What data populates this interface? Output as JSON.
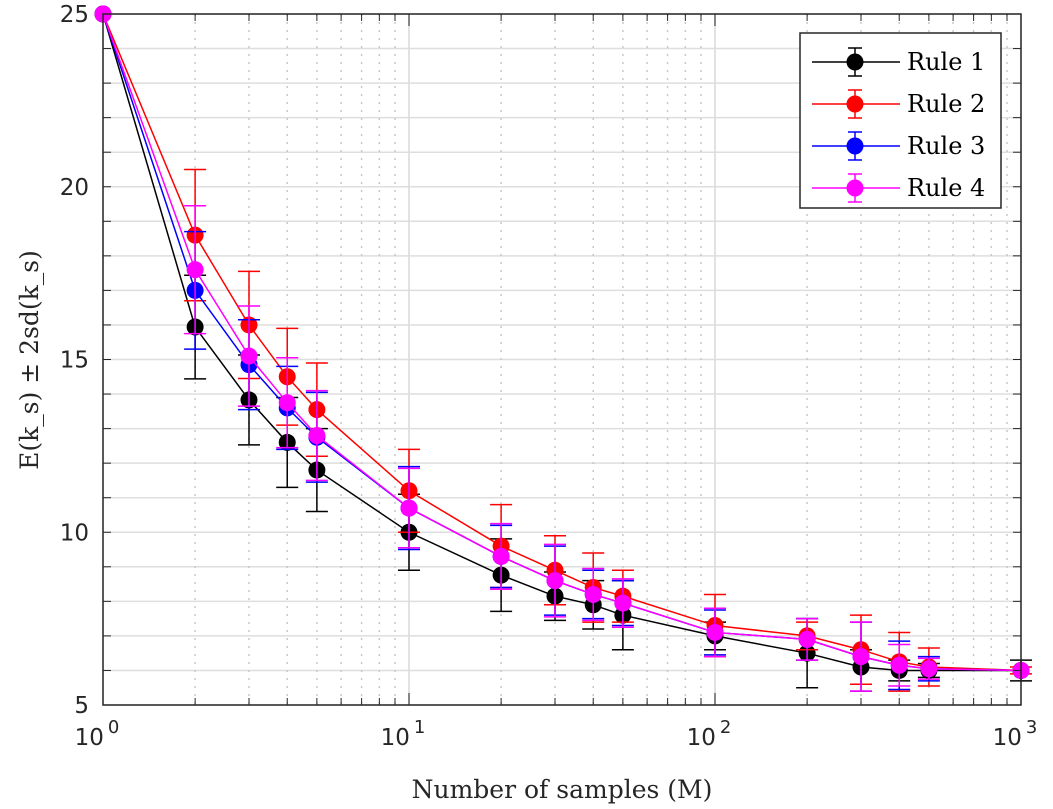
{
  "chart_data": {
    "type": "line",
    "xlabel": "Number of samples (M)",
    "ylabel": "E(k_s) ± 2sd(k_s)",
    "xscale": "log",
    "xlim": [
      1,
      1000
    ],
    "ylim": [
      5,
      25
    ],
    "xticks": [
      {
        "base": "10",
        "exp": "0",
        "value": 1
      },
      {
        "base": "10",
        "exp": "1",
        "value": 10
      },
      {
        "base": "10",
        "exp": "2",
        "value": 100
      },
      {
        "base": "10",
        "exp": "3",
        "value": 1000
      }
    ],
    "yticks": [
      "5",
      "10",
      "15",
      "20",
      "25"
    ],
    "grid": true,
    "legend_position": "top-right",
    "x": [
      1,
      2,
      3,
      4,
      5,
      10,
      20,
      30,
      40,
      50,
      100,
      200,
      300,
      400,
      500,
      1000
    ],
    "series": [
      {
        "name": "Rule 1",
        "color": "#000000",
        "values": [
          25,
          15.94,
          13.83,
          12.6,
          11.8,
          10.0,
          8.76,
          8.15,
          7.9,
          7.6,
          7.0,
          6.5,
          6.1,
          6.0,
          6.0,
          6.0
        ],
        "errors": [
          0,
          1.5,
          1.3,
          1.3,
          1.2,
          1.1,
          1.05,
          0.7,
          0.7,
          1.0,
          0.4,
          1.0,
          0.5,
          0.3,
          0.2,
          0.3
        ]
      },
      {
        "name": "Rule 2",
        "color": "#ff0000",
        "values": [
          25,
          18.6,
          16.0,
          14.5,
          13.55,
          11.2,
          9.6,
          8.9,
          8.4,
          8.15,
          7.3,
          7.0,
          6.6,
          6.25,
          6.1,
          6.0
        ],
        "errors": [
          0,
          1.9,
          1.55,
          1.4,
          1.35,
          1.2,
          1.2,
          1.0,
          1.0,
          0.75,
          0.9,
          0.4,
          1.0,
          0.85,
          0.55,
          0.1
        ]
      },
      {
        "name": "Rule 3",
        "color": "#0000ff",
        "values": [
          25,
          17.0,
          14.85,
          13.6,
          12.75,
          10.7,
          9.3,
          8.6,
          8.2,
          7.95,
          7.1,
          6.9,
          6.4,
          6.15,
          6.05,
          6.0
        ],
        "errors": [
          0,
          1.7,
          1.3,
          1.2,
          1.3,
          1.2,
          0.9,
          1.0,
          0.7,
          0.65,
          0.65,
          0.6,
          1.0,
          0.7,
          0.35,
          0
        ]
      },
      {
        "name": "Rule 4",
        "color": "#ff00ff",
        "values": [
          25,
          17.6,
          15.1,
          13.75,
          12.8,
          10.7,
          9.3,
          8.6,
          8.2,
          7.95,
          7.1,
          6.9,
          6.4,
          6.15,
          6.05,
          6.0
        ],
        "errors": [
          0,
          1.85,
          1.45,
          1.3,
          1.3,
          1.15,
          0.95,
          1.05,
          0.75,
          0.7,
          0.7,
          0.6,
          1.0,
          0.6,
          0.3,
          0
        ]
      }
    ]
  }
}
